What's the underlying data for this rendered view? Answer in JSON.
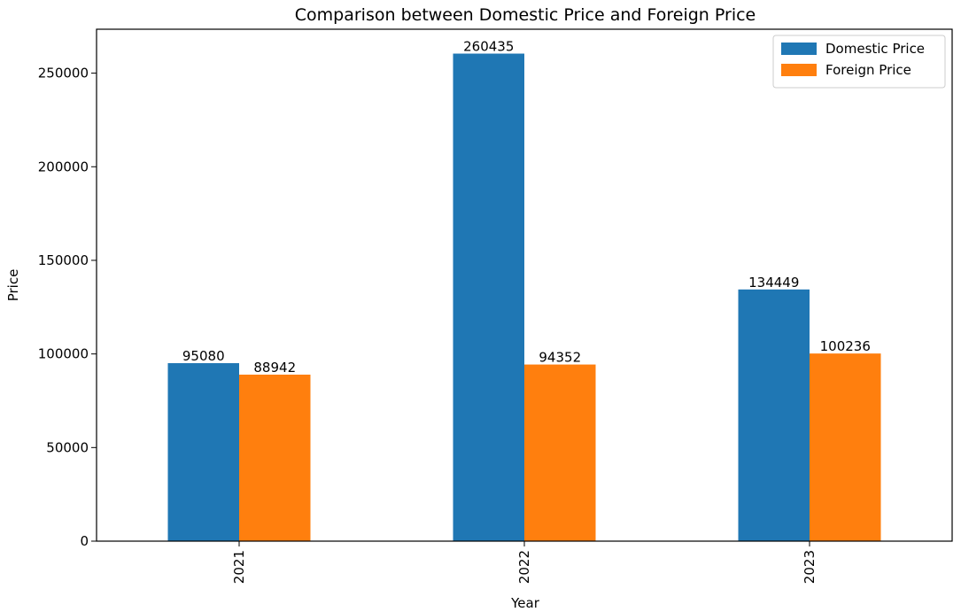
{
  "chart_data": {
    "type": "bar",
    "title": "Comparison between Domestic Price and Foreign Price",
    "xlabel": "Year",
    "ylabel": "Price",
    "categories": [
      "2021",
      "2022",
      "2023"
    ],
    "series": [
      {
        "name": "Domestic Price",
        "color": "#1f77b4",
        "values": [
          95080,
          260435,
          134449
        ]
      },
      {
        "name": "Foreign Price",
        "color": "#ff7f0e",
        "values": [
          88942,
          94352,
          100236
        ]
      }
    ],
    "ylim": [
      0,
      273457
    ],
    "yticks": [
      0,
      50000,
      100000,
      150000,
      200000,
      250000
    ],
    "grid": false,
    "legend_position": "top-right",
    "x_tick_rotation": 90
  }
}
